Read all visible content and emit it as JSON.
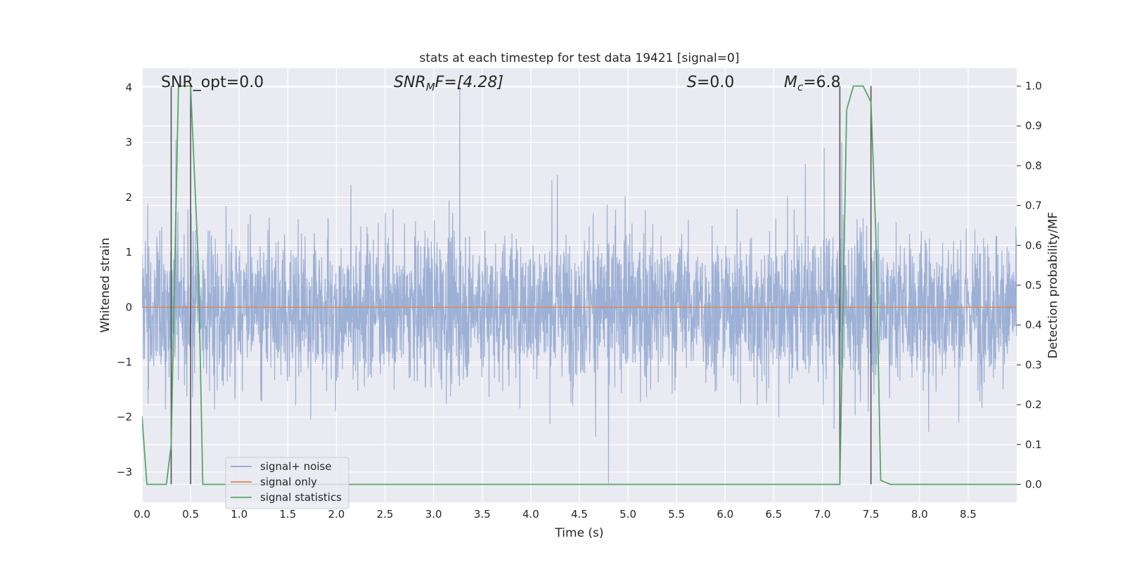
{
  "chart_data": {
    "type": "line",
    "title": "stats at each timestep for test data 19421 [signal=0]",
    "xlabel": "Time (s)",
    "ylabel": "Whitened strain",
    "y2label": "Detection probability/MF",
    "xlim": [
      0.0,
      9.0
    ],
    "ylim": [
      -3.55,
      4.35
    ],
    "y2lim": [
      -0.045,
      1.045
    ],
    "x_ticks": [
      "0.0",
      "0.5",
      "1.0",
      "1.5",
      "2.0",
      "2.5",
      "3.0",
      "3.5",
      "4.0",
      "4.5",
      "5.0",
      "5.5",
      "6.0",
      "6.5",
      "7.0",
      "7.5",
      "8.0",
      "8.5"
    ],
    "y_ticks": [
      "4",
      "3",
      "2",
      "1",
      "0",
      "−1",
      "−2",
      "−3"
    ],
    "y2_ticks": [
      "1.0",
      "0.9",
      "0.8",
      "0.7",
      "0.6",
      "0.5",
      "0.4",
      "0.3",
      "0.2",
      "0.1",
      "0.0"
    ],
    "grid": true,
    "legend_position": "lower-left",
    "annotations": {
      "snr_opt": "SNR_opt=0.0",
      "snr_mf_base": "SNR",
      "snr_mf_sub": "M",
      "snr_mf_rest": "F=[4.28]",
      "s_var": "S",
      "s_rest": "=0.0",
      "mc_var": "M",
      "mc_sub": "c",
      "mc_rest": "=6.8"
    },
    "series": [
      {
        "name": "signal+ noise",
        "color": "#8fa6d0",
        "description_type": "noise",
        "envelope_typical": [
          -1.8,
          1.8
        ],
        "extremes": [
          [
            0.3,
            -3.1
          ],
          [
            3.27,
            4.0
          ],
          [
            4.8,
            -3.2
          ],
          [
            0.35,
            3.05
          ],
          [
            7.2,
            3.0
          ]
        ]
      },
      {
        "name": "signal only",
        "color": "#dd8452",
        "x": [
          0.0,
          9.0
        ],
        "y": [
          0.0,
          0.0
        ]
      },
      {
        "name": "signal statistics",
        "color": "#55a868",
        "axis": "right",
        "x": [
          0.0,
          0.05,
          0.1,
          0.25,
          0.3,
          0.375,
          0.5,
          0.58,
          0.625,
          0.7,
          1.0,
          7.18,
          7.25,
          7.32,
          7.42,
          7.5,
          7.55,
          7.6,
          7.7,
          9.0
        ],
        "y": [
          0.17,
          0.0,
          0.0,
          0.0,
          0.1,
          1.0,
          1.0,
          0.55,
          0.0,
          0.0,
          0.0,
          0.0,
          0.94,
          1.0,
          1.0,
          0.96,
          0.63,
          0.01,
          0.0,
          0.0
        ]
      }
    ],
    "vertical_markers": [
      0.3,
      0.5,
      7.18,
      7.5
    ]
  }
}
